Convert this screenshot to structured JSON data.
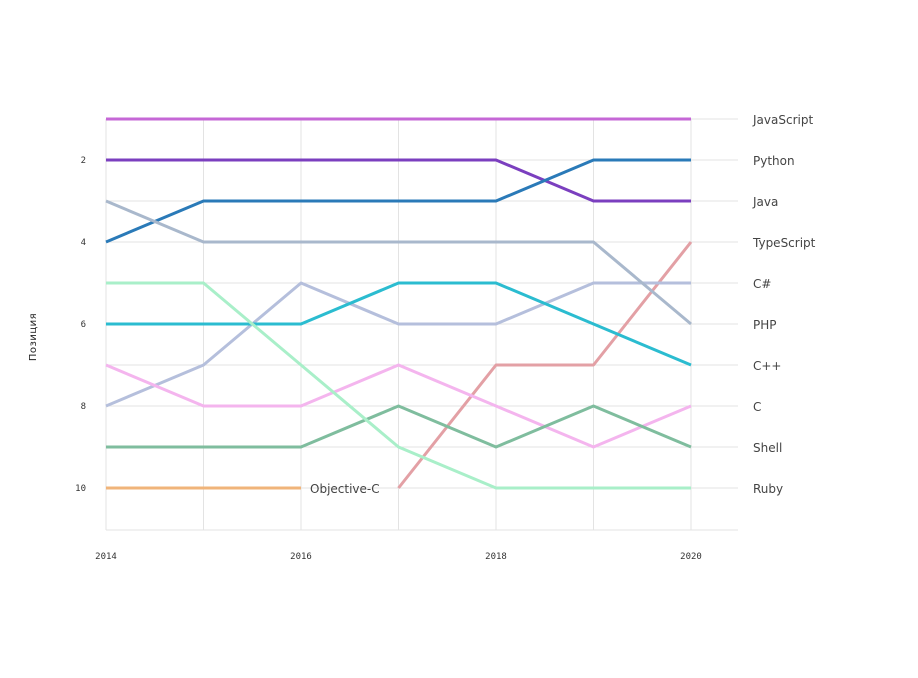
{
  "chart_data": {
    "type": "line",
    "title": "",
    "xlabel": "",
    "ylabel": "Позиция",
    "x": [
      2014,
      2015,
      2016,
      2017,
      2018,
      2019,
      2020
    ],
    "x_ticks": [
      "2014",
      "2016",
      "2018",
      "2020"
    ],
    "y_ticks": [
      "2",
      "4",
      "6",
      "8",
      "10"
    ],
    "ylim": [
      1,
      11
    ],
    "y_inverted": true,
    "grid": true,
    "series": [
      {
        "name": "JavaScript",
        "color": "#c567d6",
        "values": [
          1,
          1,
          1,
          1,
          1,
          1,
          1
        ]
      },
      {
        "name": "Python",
        "color": "#7b3fbf",
        "values": [
          2,
          2,
          2,
          2,
          2,
          3,
          3
        ]
      },
      {
        "name": "Java",
        "color": "#2a7ab8",
        "values": [
          4,
          3,
          3,
          3,
          3,
          2,
          2
        ]
      },
      {
        "name": "TypeScript",
        "color": "#e3a0a5",
        "values": [
          null,
          null,
          null,
          10,
          7,
          7,
          4
        ]
      },
      {
        "name": "C#",
        "color": "#b5bfdc",
        "values": [
          8,
          7,
          5,
          6,
          6,
          5,
          5
        ]
      },
      {
        "name": "PHP",
        "color": "#a9b8cc",
        "values": [
          3,
          4,
          4,
          4,
          4,
          4,
          6
        ]
      },
      {
        "name": "C++",
        "color": "#2bbcd0",
        "values": [
          6,
          6,
          6,
          5,
          5,
          6,
          7
        ]
      },
      {
        "name": "C",
        "color": "#f4b5ee",
        "values": [
          7,
          8,
          8,
          7,
          8,
          9,
          8
        ]
      },
      {
        "name": "Shell",
        "color": "#7fbd9e",
        "values": [
          9,
          9,
          9,
          8,
          9,
          8,
          9
        ]
      },
      {
        "name": "Ruby",
        "color": "#a9efc9",
        "values": [
          5,
          5,
          7,
          9,
          10,
          10,
          10
        ]
      },
      {
        "name": "Objective-C",
        "color": "#f0b47a",
        "values": [
          10,
          10,
          10,
          null,
          null,
          null,
          null
        ]
      }
    ],
    "end_labels": [
      "JavaScript",
      "Python",
      "Java",
      "TypeScript",
      "C#",
      "PHP",
      "C++",
      "C",
      "Shell",
      "Ruby"
    ],
    "inline_labels": [
      {
        "text": "Objective-C",
        "series": "Objective-C",
        "x": 2016,
        "y": 10
      }
    ]
  }
}
